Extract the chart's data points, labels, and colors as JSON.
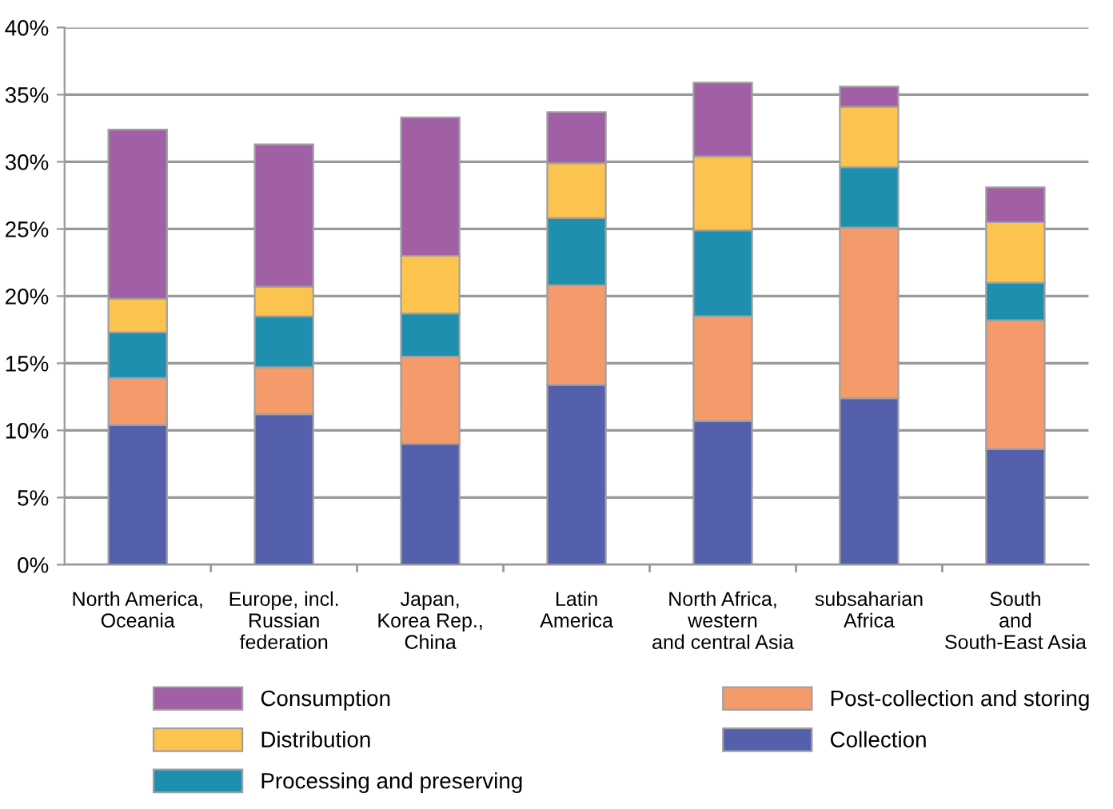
{
  "chart_data": {
    "type": "bar",
    "stacked": true,
    "categories": [
      "North America,\nOceania",
      "Europe, incl.\nRussian\nfederation",
      "Japan,\nKorea Rep.,\nChina",
      "Latin\nAmerica",
      "North Africa,\nwestern\nand central Asia",
      "subsaharian\nAfrica",
      "South\nand\nSouth-East Asia"
    ],
    "series": [
      {
        "name": "Collection",
        "color": "#5560ad",
        "values": [
          10.4,
          11.2,
          9.0,
          13.4,
          10.7,
          12.4,
          8.6
        ]
      },
      {
        "name": "Post-collection and storing",
        "color": "#f59a6a",
        "values": [
          3.5,
          3.5,
          6.5,
          7.4,
          7.8,
          12.7,
          9.6
        ]
      },
      {
        "name": "Processing and preserving",
        "color": "#1f8fb0",
        "values": [
          3.4,
          3.8,
          3.2,
          5.0,
          6.4,
          4.5,
          2.8
        ]
      },
      {
        "name": "Distribution",
        "color": "#fcc44e",
        "values": [
          2.5,
          2.2,
          4.3,
          4.1,
          5.5,
          4.5,
          4.5
        ]
      },
      {
        "name": "Consumption",
        "color": "#a15fa6",
        "values": [
          12.6,
          10.6,
          10.3,
          3.8,
          5.5,
          1.5,
          2.6
        ]
      }
    ],
    "ylim": [
      0,
      40
    ],
    "yticks": [
      {
        "value": 0,
        "label": "0%"
      },
      {
        "value": 5,
        "label": "5%"
      },
      {
        "value": 10,
        "label": "10%"
      },
      {
        "value": 15,
        "label": "15%"
      },
      {
        "value": 20,
        "label": "20%"
      },
      {
        "value": 25,
        "label": "25%"
      },
      {
        "value": 30,
        "label": "30%"
      },
      {
        "value": 35,
        "label": "35%"
      },
      {
        "value": 40,
        "label": "40%"
      }
    ],
    "grid": "y",
    "legend": "bottom"
  }
}
